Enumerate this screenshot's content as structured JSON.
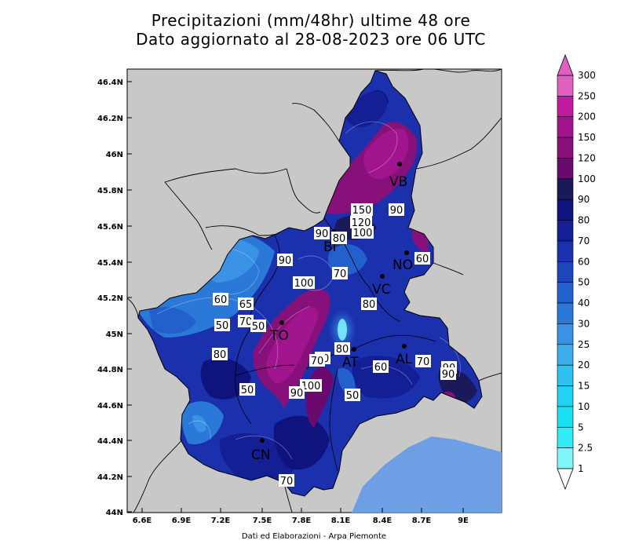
{
  "title": {
    "line1": "Precipitazioni (mm/48hr) ultime 48 ore",
    "line2": "Dato aggiornato al 28-08-2023 ore 06 UTC"
  },
  "axes": {
    "lon_labels": [
      "6.6E",
      "6.9E",
      "7.2E",
      "7.5E",
      "7.8E",
      "8.1E",
      "8.4E",
      "8.7E",
      "9E"
    ],
    "lat_labels": [
      "46.4N",
      "46.2N",
      "46N",
      "45.8N",
      "45.6N",
      "45.4N",
      "45.2N",
      "45N",
      "44.8N",
      "44.6N",
      "44.4N",
      "44.2N",
      "44N"
    ]
  },
  "legend": {
    "levels": [
      "300",
      "250",
      "200",
      "150",
      "120",
      "100",
      "90",
      "80",
      "70",
      "60",
      "50",
      "40",
      "30",
      "25",
      "20",
      "15",
      "10",
      "5",
      "2.5",
      "1"
    ],
    "colors": [
      "#e060c0",
      "#c01aa0",
      "#a0158e",
      "#88107a",
      "#6a0a6e",
      "#1a1a5a",
      "#0e137e",
      "#141f96",
      "#1a30ac",
      "#1e46bc",
      "#2260cc",
      "#2a78d8",
      "#3a92e6",
      "#3caeec",
      "#2ec2f0",
      "#22d2f2",
      "#1ae0f4",
      "#30ecf6",
      "#80f6fb"
    ],
    "colors_note": "top (>=300) to bottom band (1-2.5); arrow colors: top #e060c0, bottom #ffffff"
  },
  "cities": [
    {
      "code": "VB"
    },
    {
      "code": "BI"
    },
    {
      "code": "NO"
    },
    {
      "code": "VC"
    },
    {
      "code": "TO"
    },
    {
      "code": "AT"
    },
    {
      "code": "AL"
    },
    {
      "code": "CN"
    }
  ],
  "value_labels": [
    "150",
    "90",
    "120",
    "100",
    "90",
    "80",
    "60",
    "90",
    "100",
    "70",
    "80",
    "60",
    "65",
    "70",
    "50",
    "50",
    "80",
    "80",
    "90",
    "70",
    "100",
    "90",
    "50",
    "60",
    "50",
    "70",
    "90",
    "90",
    "70"
  ],
  "credit": "Dati ed Elaborazioni - Arpa Piemonte"
}
